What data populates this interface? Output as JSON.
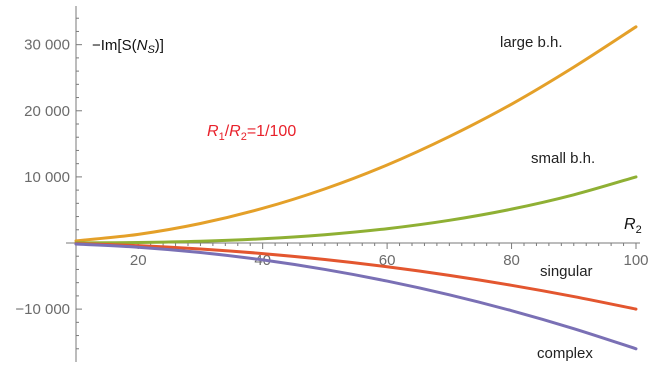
{
  "chart_data": {
    "type": "line",
    "title": "",
    "ylabel": "−Im[S(N_S)]",
    "xlabel": "R_2",
    "parameter_label": "R_1/R_2=1/100",
    "xlim": [
      10,
      100
    ],
    "ylim": [
      -18000,
      36000
    ],
    "xticks": [
      20,
      40,
      60,
      80,
      100
    ],
    "xtick_labels": [
      "20",
      "40",
      "60",
      "80",
      "100"
    ],
    "yticks": [
      -10000,
      10000,
      20000,
      30000
    ],
    "ytick_labels": [
      "−10 000",
      "10 000",
      "20 000",
      "30 000"
    ],
    "x": [
      10,
      20,
      30,
      40,
      50,
      60,
      70,
      80,
      90,
      100
    ],
    "series": [
      {
        "name": "large b.h.",
        "color": "#e4a029",
        "values": [
          330,
          1310,
          2950,
          5240,
          8190,
          11800,
          16100,
          21000,
          26600,
          32700
        ]
      },
      {
        "name": "small b.h.",
        "color": "#8fb034",
        "values": [
          10,
          80,
          270,
          640,
          1250,
          2160,
          3430,
          5120,
          7290,
          10000
        ]
      },
      {
        "name": "singular",
        "color": "#e3562f",
        "values": [
          -100,
          -400,
          -900,
          -1600,
          -2500,
          -3600,
          -4900,
          -6400,
          -8100,
          -10000
        ]
      },
      {
        "name": "complex",
        "color": "#7a70b5",
        "values": [
          -160,
          -640,
          -1440,
          -2560,
          -4000,
          -5760,
          -7840,
          -10240,
          -12960,
          -16000
        ]
      }
    ]
  }
}
